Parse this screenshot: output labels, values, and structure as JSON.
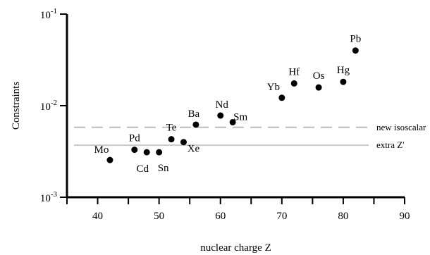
{
  "chart_data": {
    "type": "scatter",
    "title": "",
    "xlabel": "nuclear charge  Z",
    "ylabel": "Constraints",
    "x_scale": "linear",
    "y_scale": "log",
    "xlim": [
      35,
      90
    ],
    "ylim": [
      0.001,
      0.1
    ],
    "x_ticks": [
      40,
      50,
      60,
      70,
      80,
      90
    ],
    "x_tick_labels": [
      "40",
      "50",
      "60",
      "70",
      "80",
      "90"
    ],
    "y_ticks": [
      0.001,
      0.01,
      0.1
    ],
    "y_tick_labels": [
      {
        "base": "10",
        "exp": "-3"
      },
      {
        "base": "10",
        "exp": "-2"
      },
      {
        "base": "10",
        "exp": "-1"
      }
    ],
    "grid": false,
    "legend": "none",
    "point_color": "#000000",
    "points": [
      {
        "label": "Mo",
        "x": 42,
        "y": 0.00255
      },
      {
        "label": "Pd",
        "x": 46,
        "y": 0.0033
      },
      {
        "label": "Cd",
        "x": 48,
        "y": 0.0031
      },
      {
        "label": "Sn",
        "x": 50,
        "y": 0.0031
      },
      {
        "label": "Te",
        "x": 52,
        "y": 0.0043
      },
      {
        "label": "Xe",
        "x": 54,
        "y": 0.004
      },
      {
        "label": "Ba",
        "x": 56,
        "y": 0.0062
      },
      {
        "label": "Nd",
        "x": 60,
        "y": 0.0078
      },
      {
        "label": "Sm",
        "x": 62,
        "y": 0.0066
      },
      {
        "label": "Yb",
        "x": 70,
        "y": 0.0122
      },
      {
        "label": "Hf",
        "x": 72,
        "y": 0.0175
      },
      {
        "label": "Os",
        "x": 76,
        "y": 0.0158
      },
      {
        "label": "Hg",
        "x": 80,
        "y": 0.0182
      },
      {
        "label": "Pb",
        "x": 82,
        "y": 0.04
      }
    ],
    "reference_lines": [
      {
        "label": "new isoscalar",
        "y": 0.0058,
        "style": "dashed",
        "color": "#bbbbbb"
      },
      {
        "label": "extra Z'",
        "y": 0.0037,
        "style": "solid",
        "color": "#c8c8c8"
      }
    ]
  }
}
